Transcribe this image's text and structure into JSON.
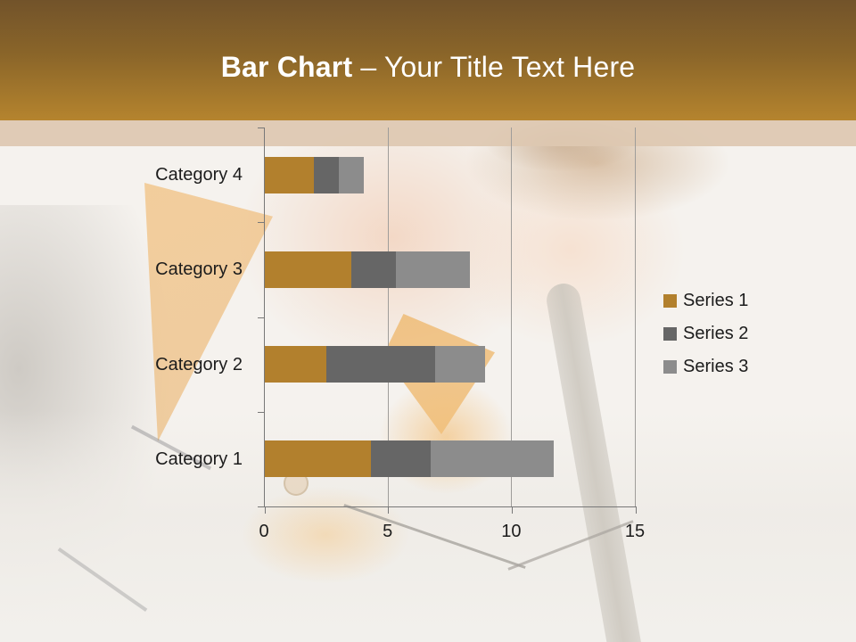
{
  "slide": {
    "title_bold": "Bar Chart",
    "title_rest": "– Your Title Text Here"
  },
  "theme": {
    "header_gradient_top": "#72532A",
    "header_gradient_bottom": "#B5842E",
    "accent_strip_color": "#DDC8B1",
    "title_text_color": "#FFFFFF",
    "chart_text_color": "#1C1C1C",
    "gridline_color": "#9F9D9A",
    "axis_color": "#787878"
  },
  "chart_data": {
    "type": "bar",
    "orientation": "horizontal",
    "stacked": true,
    "title": "",
    "categories": [
      "Category 1",
      "Category 2",
      "Category 3",
      "Category 4"
    ],
    "series": [
      {
        "name": "Series 1",
        "color": "#B2802D",
        "values": [
          4.3,
          2.5,
          3.5,
          2.0
        ]
      },
      {
        "name": "Series 2",
        "color": "#666666",
        "values": [
          2.4,
          4.4,
          1.8,
          1.0
        ]
      },
      {
        "name": "Series 3",
        "color": "#8C8C8C",
        "values": [
          5.0,
          2.0,
          3.0,
          1.0
        ]
      }
    ],
    "x_axis": {
      "min": 0,
      "max": 15,
      "ticks": [
        0,
        5,
        10,
        15
      ]
    },
    "grid": "vertical-major-gridlines",
    "legend_position": "middle-right",
    "category_order": "Category 1 at bottom, Category 4 at top"
  }
}
